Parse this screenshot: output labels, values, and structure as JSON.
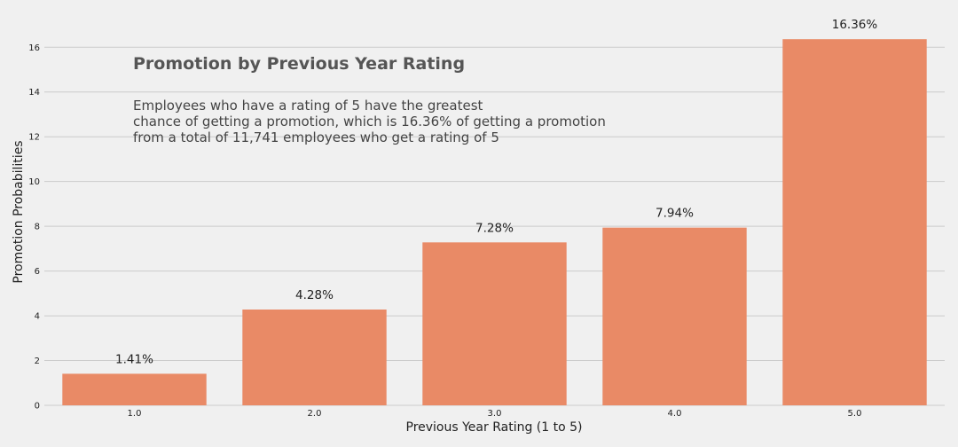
{
  "chart_data": {
    "type": "bar",
    "title": "Promotion by Previous Year Rating",
    "annotation": [
      "Employees who have a rating of 5 have the greatest",
      "chance of getting a promotion, which is 16.36% of getting a promotion",
      "from a total of 11,741 employees who get a rating of 5"
    ],
    "xlabel": "Previous Year Rating (1 to 5)",
    "ylabel": "Promotion Probabilities",
    "categories": [
      "1.0",
      "2.0",
      "3.0",
      "4.0",
      "5.0"
    ],
    "values": [
      1.41,
      4.28,
      7.28,
      7.94,
      16.36
    ],
    "data_labels": [
      "1.41%",
      "4.28%",
      "7.28%",
      "7.94%",
      "16.36%"
    ],
    "ylim": [
      0,
      17.2
    ],
    "yticks": [
      0,
      2,
      4,
      6,
      8,
      10,
      12,
      14,
      16
    ],
    "grid": true,
    "bar_color": "#e98a66",
    "background_color": "#f0f0f0",
    "grid_color": "#cbcbcb"
  }
}
